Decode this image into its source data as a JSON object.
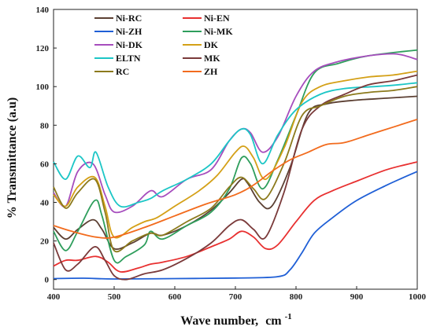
{
  "chart_data": {
    "type": "line",
    "xlabel": "Wave number,",
    "xlabel_unit": "cm",
    "xlabel_unit_exp": "-1",
    "ylabel": "% Transmittance (a.u)",
    "xlim": [
      400,
      1000
    ],
    "ylim": [
      -5,
      140
    ],
    "xticks": [
      400,
      500,
      600,
      700,
      800,
      900,
      1000
    ],
    "yticks": [
      0,
      20,
      40,
      60,
      80,
      100,
      120,
      140
    ],
    "grid": false,
    "legend_position": "top-left",
    "series": [
      {
        "name": "Ni-RC",
        "color": "#5c4033",
        "points": [
          [
            400,
            27
          ],
          [
            420,
            21
          ],
          [
            440,
            26
          ],
          [
            465,
            31
          ],
          [
            480,
            26
          ],
          [
            500,
            16
          ],
          [
            530,
            19
          ],
          [
            560,
            24
          ],
          [
            580,
            23
          ],
          [
            620,
            28
          ],
          [
            660,
            36
          ],
          [
            690,
            45
          ],
          [
            710,
            52
          ],
          [
            720,
            50
          ],
          [
            740,
            40
          ],
          [
            760,
            38
          ],
          [
            790,
            58
          ],
          [
            820,
            86
          ],
          [
            850,
            91
          ],
          [
            900,
            93
          ],
          [
            950,
            94
          ],
          [
            1000,
            95
          ]
        ]
      },
      {
        "name": "Ni-EN",
        "color": "#e83030",
        "points": [
          [
            400,
            7
          ],
          [
            420,
            10
          ],
          [
            440,
            10
          ],
          [
            470,
            12
          ],
          [
            490,
            9
          ],
          [
            510,
            4
          ],
          [
            540,
            6
          ],
          [
            560,
            8
          ],
          [
            580,
            9
          ],
          [
            620,
            12
          ],
          [
            660,
            17
          ],
          [
            690,
            21
          ],
          [
            710,
            25
          ],
          [
            730,
            22
          ],
          [
            750,
            16
          ],
          [
            770,
            18
          ],
          [
            800,
            30
          ],
          [
            830,
            41
          ],
          [
            860,
            46
          ],
          [
            900,
            51
          ],
          [
            950,
            57
          ],
          [
            1000,
            61
          ]
        ]
      },
      {
        "name": "Ni-ZH",
        "color": "#1f5fd6",
        "points": [
          [
            400,
            0.5
          ],
          [
            450,
            0.7
          ],
          [
            500,
            0.3
          ],
          [
            600,
            0.5
          ],
          [
            700,
            0.8
          ],
          [
            770,
            1.5
          ],
          [
            790,
            5
          ],
          [
            810,
            14
          ],
          [
            830,
            24
          ],
          [
            860,
            32
          ],
          [
            900,
            41
          ],
          [
            950,
            49
          ],
          [
            1000,
            56
          ]
        ]
      },
      {
        "name": "Ni-MK",
        "color": "#2e9e5c",
        "points": [
          [
            400,
            25
          ],
          [
            420,
            15
          ],
          [
            440,
            25
          ],
          [
            468,
            41
          ],
          [
            480,
            33
          ],
          [
            500,
            10
          ],
          [
            520,
            12
          ],
          [
            550,
            18
          ],
          [
            560,
            25
          ],
          [
            580,
            21
          ],
          [
            620,
            28
          ],
          [
            660,
            35
          ],
          [
            690,
            47
          ],
          [
            710,
            63
          ],
          [
            725,
            60
          ],
          [
            745,
            47
          ],
          [
            770,
            62
          ],
          [
            800,
            85
          ],
          [
            830,
            107
          ],
          [
            870,
            112
          ],
          [
            920,
            116
          ],
          [
            1000,
            119
          ]
        ]
      },
      {
        "name": "Ni-DK",
        "color": "#a64dbd",
        "points": [
          [
            400,
            45
          ],
          [
            420,
            38
          ],
          [
            440,
            56
          ],
          [
            465,
            60
          ],
          [
            485,
            44
          ],
          [
            500,
            35
          ],
          [
            530,
            38
          ],
          [
            560,
            46
          ],
          [
            580,
            43
          ],
          [
            620,
            52
          ],
          [
            660,
            57
          ],
          [
            690,
            72
          ],
          [
            710,
            78
          ],
          [
            725,
            76
          ],
          [
            745,
            66
          ],
          [
            770,
            74
          ],
          [
            800,
            95
          ],
          [
            830,
            108
          ],
          [
            870,
            113
          ],
          [
            920,
            116
          ],
          [
            960,
            117
          ],
          [
            980,
            116
          ],
          [
            1000,
            114
          ]
        ]
      },
      {
        "name": "DK",
        "color": "#d4a017",
        "points": [
          [
            400,
            44
          ],
          [
            420,
            38
          ],
          [
            440,
            48
          ],
          [
            468,
            53
          ],
          [
            485,
            38
          ],
          [
            500,
            22
          ],
          [
            530,
            27
          ],
          [
            550,
            30
          ],
          [
            570,
            32
          ],
          [
            600,
            38
          ],
          [
            640,
            46
          ],
          [
            670,
            54
          ],
          [
            700,
            66
          ],
          [
            715,
            69
          ],
          [
            730,
            63
          ],
          [
            750,
            52
          ],
          [
            780,
            68
          ],
          [
            810,
            92
          ],
          [
            840,
            100
          ],
          [
            880,
            103
          ],
          [
            920,
            105
          ],
          [
            960,
            106
          ],
          [
            1000,
            108
          ]
        ]
      },
      {
        "name": "ELTN",
        "color": "#1cc6c6",
        "points": [
          [
            400,
            61
          ],
          [
            420,
            52
          ],
          [
            440,
            64
          ],
          [
            460,
            58
          ],
          [
            470,
            66
          ],
          [
            490,
            48
          ],
          [
            510,
            38
          ],
          [
            540,
            40
          ],
          [
            560,
            42
          ],
          [
            580,
            46
          ],
          [
            620,
            52
          ],
          [
            660,
            60
          ],
          [
            690,
            72
          ],
          [
            710,
            78
          ],
          [
            725,
            75
          ],
          [
            745,
            60
          ],
          [
            770,
            75
          ],
          [
            800,
            88
          ],
          [
            840,
            96
          ],
          [
            880,
            99
          ],
          [
            930,
            100
          ],
          [
            970,
            101
          ],
          [
            1000,
            102
          ]
        ]
      },
      {
        "name": "MK",
        "color": "#7a3a3a",
        "points": [
          [
            400,
            19
          ],
          [
            420,
            5
          ],
          [
            440,
            8
          ],
          [
            468,
            17
          ],
          [
            485,
            10
          ],
          [
            500,
            2
          ],
          [
            520,
            0
          ],
          [
            550,
            3
          ],
          [
            580,
            5
          ],
          [
            620,
            11
          ],
          [
            660,
            19
          ],
          [
            690,
            28
          ],
          [
            710,
            31
          ],
          [
            730,
            26
          ],
          [
            750,
            22
          ],
          [
            780,
            45
          ],
          [
            810,
            78
          ],
          [
            840,
            90
          ],
          [
            880,
            96
          ],
          [
            920,
            101
          ],
          [
            960,
            103
          ],
          [
            1000,
            106
          ]
        ]
      },
      {
        "name": "RC",
        "color": "#8c7a1c",
        "points": [
          [
            400,
            48
          ],
          [
            420,
            37
          ],
          [
            440,
            45
          ],
          [
            468,
            52
          ],
          [
            485,
            35
          ],
          [
            500,
            15
          ],
          [
            530,
            20
          ],
          [
            560,
            24
          ],
          [
            580,
            23
          ],
          [
            620,
            30
          ],
          [
            660,
            37
          ],
          [
            690,
            48
          ],
          [
            710,
            53
          ],
          [
            730,
            47
          ],
          [
            750,
            42
          ],
          [
            780,
            60
          ],
          [
            810,
            85
          ],
          [
            840,
            90
          ],
          [
            880,
            95
          ],
          [
            920,
            97
          ],
          [
            960,
            98
          ],
          [
            1000,
            100
          ]
        ]
      },
      {
        "name": "ZH",
        "color": "#f26b1d",
        "points": [
          [
            400,
            28
          ],
          [
            430,
            25
          ],
          [
            470,
            22
          ],
          [
            500,
            22
          ],
          [
            550,
            27
          ],
          [
            600,
            33
          ],
          [
            650,
            39
          ],
          [
            700,
            44
          ],
          [
            730,
            49
          ],
          [
            760,
            56
          ],
          [
            790,
            62
          ],
          [
            820,
            66
          ],
          [
            850,
            70
          ],
          [
            880,
            71
          ],
          [
            920,
            75
          ],
          [
            960,
            79
          ],
          [
            1000,
            83
          ]
        ]
      }
    ]
  }
}
